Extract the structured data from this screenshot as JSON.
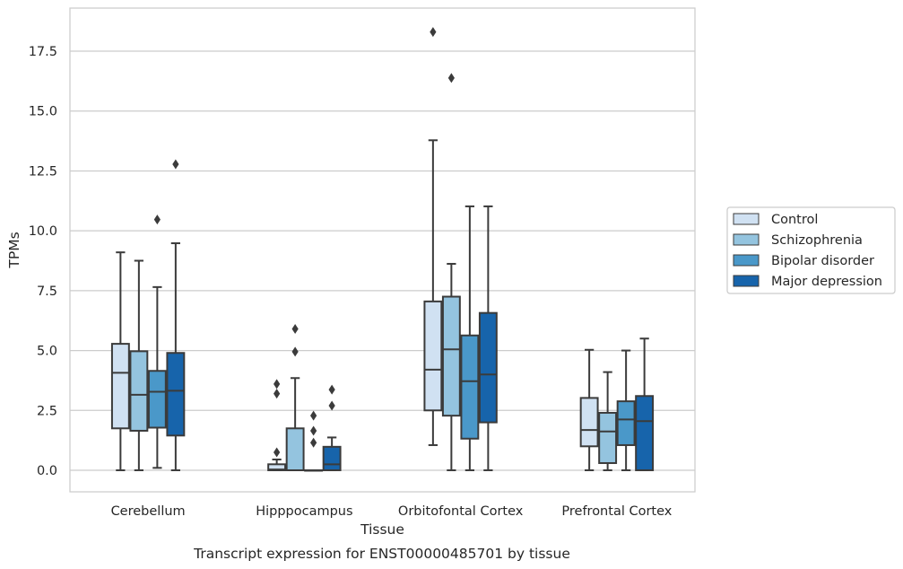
{
  "chart_data": {
    "type": "boxplot",
    "xlabel": "Tissue",
    "ylabel": "TPMs",
    "caption": "Transcript expression for ENST00000485701 by tissue",
    "categories": [
      "Cerebellum",
      "Hipppocampus",
      "Orbitofontal Cortex",
      "Prefrontal Cortex"
    ],
    "yticks": [
      0.0,
      2.5,
      5.0,
      7.5,
      10.0,
      12.5,
      15.0,
      17.5
    ],
    "ytick_labels": [
      "0.0",
      "2.5",
      "5.0",
      "7.5",
      "10.0",
      "12.5",
      "15.0",
      "17.5"
    ],
    "ylim": [
      -0.9,
      19.3
    ],
    "grid": "horizontal",
    "legend_position": "right",
    "series": [
      {
        "name": "Control",
        "color": "#d0e1f2",
        "boxes": [
          {
            "whislo": 0.0,
            "q1": 1.75,
            "med": 4.07,
            "q3": 5.28,
            "whishi": 9.1,
            "fliers": []
          },
          {
            "whislo": 0.0,
            "q1": 0.0,
            "med": 0.03,
            "q3": 0.25,
            "whishi": 0.45,
            "fliers": [
              0.75,
              3.2,
              3.6
            ]
          },
          {
            "whislo": 1.05,
            "q1": 2.5,
            "med": 4.2,
            "q3": 7.05,
            "whishi": 13.78,
            "fliers": [
              18.3
            ]
          },
          {
            "whislo": 0.0,
            "q1": 1.0,
            "med": 1.68,
            "q3": 3.02,
            "whishi": 5.03,
            "fliers": []
          }
        ]
      },
      {
        "name": "Schizophrenia",
        "color": "#94c4df",
        "boxes": [
          {
            "whislo": 0.0,
            "q1": 1.65,
            "med": 3.15,
            "q3": 4.97,
            "whishi": 8.75,
            "fliers": []
          },
          {
            "whislo": 0.0,
            "q1": 0.0,
            "med": 0.0,
            "q3": 1.75,
            "whishi": 3.85,
            "fliers": [
              4.95,
              5.9
            ]
          },
          {
            "whislo": 0.0,
            "q1": 2.28,
            "med": 5.05,
            "q3": 7.25,
            "whishi": 8.62,
            "fliers": [
              16.38
            ]
          },
          {
            "whislo": 0.0,
            "q1": 0.3,
            "med": 1.62,
            "q3": 2.4,
            "whishi": 4.1,
            "fliers": []
          }
        ]
      },
      {
        "name": "Bipolar disorder",
        "color": "#4a98c9",
        "boxes": [
          {
            "whislo": 0.1,
            "q1": 1.78,
            "med": 3.28,
            "q3": 4.15,
            "whishi": 7.65,
            "fliers": [
              10.47
            ]
          },
          {
            "whislo": 0.0,
            "q1": 0.0,
            "med": 0.0,
            "q3": 0.0,
            "whishi": 0.0,
            "fliers": [
              1.15,
              1.65,
              2.28
            ]
          },
          {
            "whislo": 0.0,
            "q1": 1.32,
            "med": 3.72,
            "q3": 5.63,
            "whishi": 11.02,
            "fliers": []
          },
          {
            "whislo": 0.0,
            "q1": 1.05,
            "med": 2.12,
            "q3": 2.88,
            "whishi": 5.0,
            "fliers": []
          }
        ]
      },
      {
        "name": "Major depression",
        "color": "#1764ab",
        "boxes": [
          {
            "whislo": 0.0,
            "q1": 1.45,
            "med": 3.32,
            "q3": 4.9,
            "whishi": 9.48,
            "fliers": [
              12.78
            ]
          },
          {
            "whislo": 0.0,
            "q1": 0.0,
            "med": 0.25,
            "q3": 0.98,
            "whishi": 1.37,
            "fliers": [
              2.7,
              3.37
            ]
          },
          {
            "whislo": 0.0,
            "q1": 2.0,
            "med": 4.0,
            "q3": 6.57,
            "whishi": 11.02,
            "fliers": []
          },
          {
            "whislo": 0.0,
            "q1": 0.0,
            "med": 2.05,
            "q3": 3.1,
            "whishi": 5.5,
            "fliers": []
          }
        ]
      }
    ]
  }
}
